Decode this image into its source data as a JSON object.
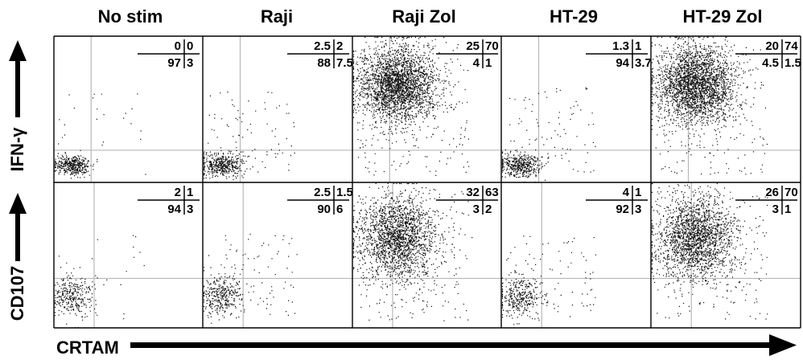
{
  "chart_data": {
    "type": "scatter",
    "description_columns": [
      "No stim",
      "Raji",
      "Raji Zol",
      "HT-29",
      "HT-29 Zol"
    ],
    "row_labels": [
      "IFN-γ",
      "CD107"
    ],
    "xlabel": "CRTAM",
    "quadrant_order": [
      "upper_left",
      "upper_right",
      "lower_left",
      "lower_right"
    ],
    "panels": [
      {
        "row": "IFN-γ",
        "column": "No stim",
        "quadrants": [
          "0",
          "0",
          "97",
          "3"
        ]
      },
      {
        "row": "IFN-γ",
        "column": "Raji",
        "quadrants": [
          "2.5",
          "2",
          "88",
          "7.5"
        ]
      },
      {
        "row": "IFN-γ",
        "column": "Raji Zol",
        "quadrants": [
          "25",
          "70",
          "4",
          "1"
        ]
      },
      {
        "row": "IFN-γ",
        "column": "HT-29",
        "quadrants": [
          "1.3",
          "1",
          "94",
          "3.7"
        ]
      },
      {
        "row": "IFN-γ",
        "column": "HT-29 Zol",
        "quadrants": [
          "20",
          "74",
          "4.5",
          "1.5"
        ]
      },
      {
        "row": "CD107",
        "column": "No stim",
        "quadrants": [
          "2",
          "1",
          "94",
          "3"
        ]
      },
      {
        "row": "CD107",
        "column": "Raji",
        "quadrants": [
          "2.5",
          "1.5",
          "90",
          "6"
        ]
      },
      {
        "row": "CD107",
        "column": "Raji Zol",
        "quadrants": [
          "32",
          "63",
          "3",
          "2"
        ]
      },
      {
        "row": "CD107",
        "column": "HT-29",
        "quadrants": [
          "4",
          "1",
          "92",
          "3"
        ]
      },
      {
        "row": "CD107",
        "column": "HT-29 Zol",
        "quadrants": [
          "26",
          "70",
          "3",
          "1"
        ]
      }
    ],
    "grid": false,
    "legend": "none"
  }
}
